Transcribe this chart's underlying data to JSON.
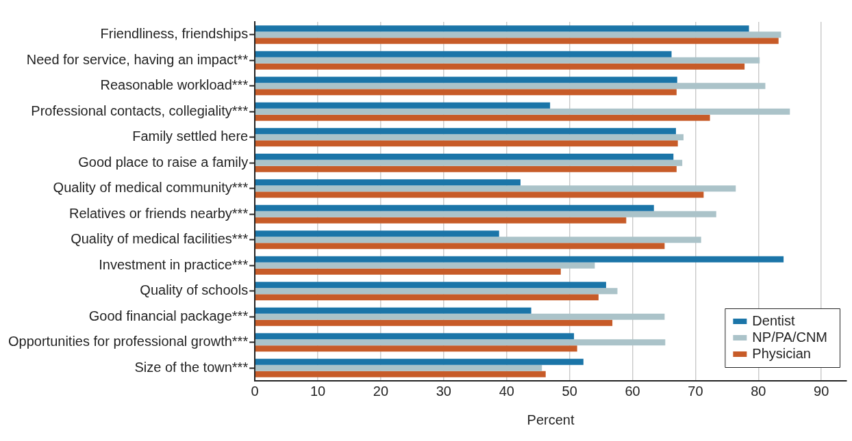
{
  "chart_data": {
    "type": "bar",
    "orientation": "horizontal",
    "xlabel": "Percent",
    "categories": [
      "Friendliness, friendships",
      "Need for service, having an impact**",
      "Reasonable workload***",
      "Professional contacts, collegiality***",
      "Family settled here",
      "Good place to raise a family",
      "Quality of medical community***",
      "Relatives or friends nearby***",
      "Quality of medical facilities***",
      "Investment in practice***",
      "Quality of schools",
      "Good financial package***",
      "Opportunities for professional growth***",
      "Size of the town***"
    ],
    "series": [
      {
        "name": "Dentist",
        "color": "#1b75a8",
        "values": [
          78.5,
          66.2,
          67.1,
          46.9,
          66.9,
          66.5,
          42.2,
          63.4,
          38.8,
          84.0,
          55.8,
          43.9,
          50.7,
          52.2
        ]
      },
      {
        "name": "NP/PA/CNM",
        "color": "#abc3c9",
        "values": [
          83.6,
          80.2,
          81.1,
          85.0,
          68.1,
          67.9,
          76.4,
          73.3,
          70.9,
          54.0,
          57.6,
          65.1,
          65.2,
          45.6
        ]
      },
      {
        "name": "Physician",
        "color": "#c75b28",
        "values": [
          83.2,
          77.8,
          67.0,
          72.3,
          67.2,
          67.0,
          71.3,
          59.0,
          65.1,
          48.6,
          54.6,
          56.8,
          51.2,
          46.2
        ]
      }
    ],
    "xlim": [
      0,
      94
    ],
    "xticks": [
      0,
      10,
      20,
      30,
      40,
      50,
      60,
      70,
      80,
      90
    ],
    "grid": "x",
    "legend": "bottom right"
  }
}
